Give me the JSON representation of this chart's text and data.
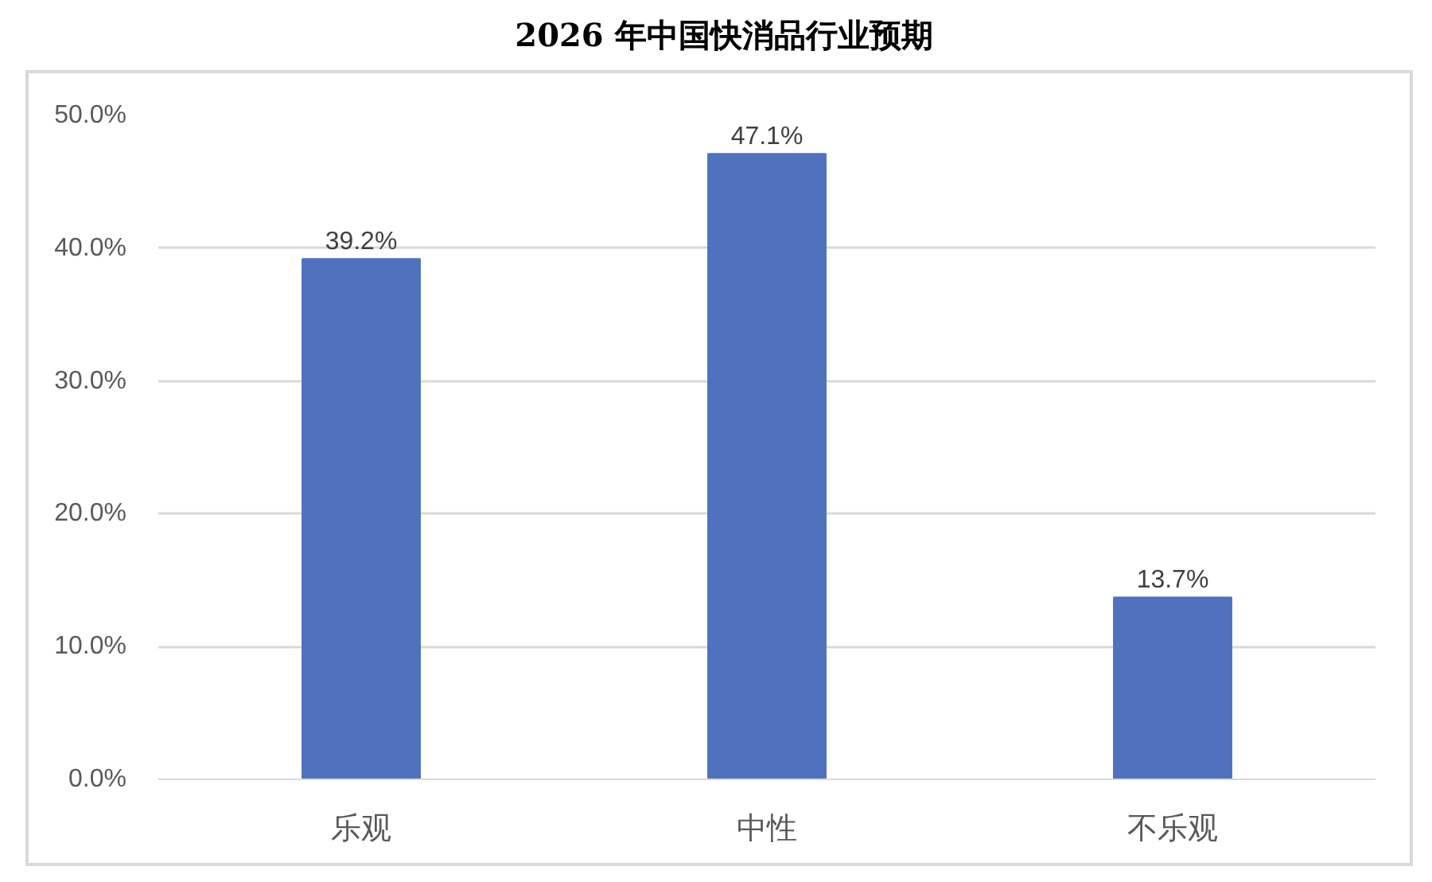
{
  "chart_data": {
    "type": "bar",
    "title": "2026 年中国快消品行业预期",
    "categories": [
      "乐观",
      "中性",
      "不乐观"
    ],
    "values": [
      39.2,
      47.1,
      13.7
    ],
    "color": "#4f71be",
    "value_labels": [
      "39.2%",
      "47.1%",
      "13.7%"
    ],
    "ylim": [
      0,
      50
    ],
    "yticks": [
      {
        "value": 0,
        "label": "0.0%"
      },
      {
        "value": 10,
        "label": "10.0%"
      },
      {
        "value": 20,
        "label": "20.0%"
      },
      {
        "value": 30,
        "label": "30.0%"
      },
      {
        "value": 40,
        "label": "40.0%"
      },
      {
        "value": 50,
        "label": "50.0%"
      }
    ],
    "grid": "y"
  }
}
